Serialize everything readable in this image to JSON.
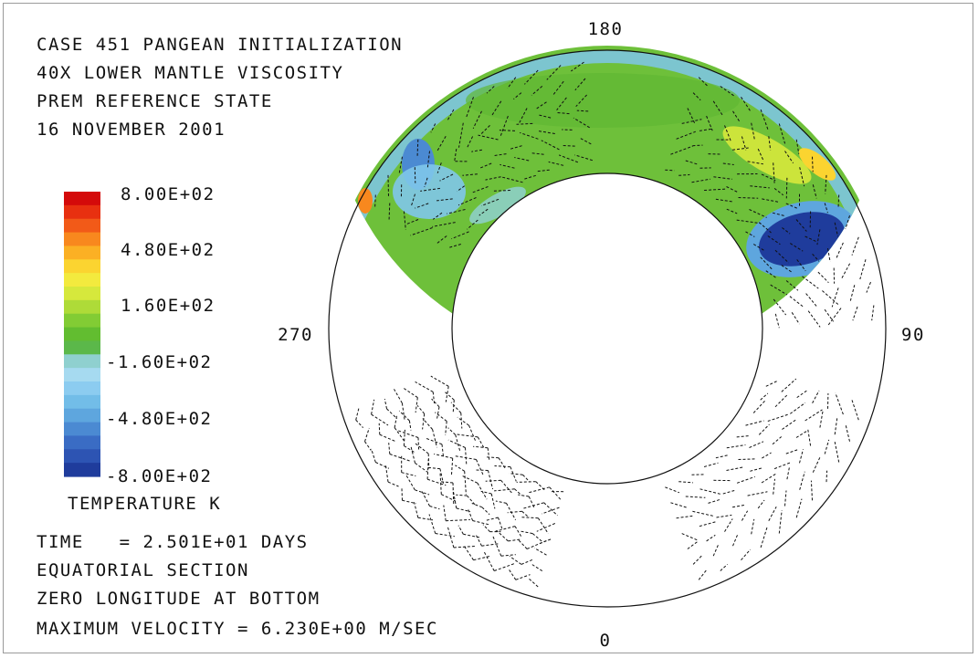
{
  "header_lines": [
    "CASE 451 PANGEAN INITIALIZATION",
    "40X LOWER MANTLE VISCOSITY",
    "PREM REFERENCE STATE",
    "16 NOVEMBER 2001"
  ],
  "colorbar": {
    "tick_labels": [
      "8.00E+02",
      "4.80E+02",
      "1.60E+02",
      "-1.60E+02",
      "-4.80E+02",
      "-8.00E+02"
    ],
    "title": "TEMPERATURE K",
    "colors_top_to_bottom": [
      "#d40a0a",
      "#e83010",
      "#f25a18",
      "#f8881e",
      "#fbb024",
      "#fbd430",
      "#f3ea3e",
      "#d6e83c",
      "#aedb38",
      "#82cc34",
      "#62bd30",
      "#5bb84a",
      "#8fd0cf",
      "#a6daf0",
      "#8cccf0",
      "#72bde8",
      "#5ea6de",
      "#4b8ad2",
      "#3a6cc4",
      "#2d54b3",
      "#1f3c9c"
    ]
  },
  "footer_lines": [
    "TIME   = 2.501E+01 DAYS",
    "EQUATORIAL SECTION",
    "ZERO LONGITUDE AT BOTTOM",
    "MAXIMUM VELOCITY = 6.230E+00 M/SEC"
  ],
  "compass_labels": {
    "top": "180",
    "right": "90",
    "bottom": "0",
    "left": "270"
  },
  "colors": {
    "background_green": "#6ec03a",
    "cold_anomaly": "#1f3c9c",
    "warm_anomaly": "#f3ea3e",
    "hot_anomaly": "#e83010",
    "boundary_blue": "#7fc6ea",
    "arrow": "#111111"
  }
}
